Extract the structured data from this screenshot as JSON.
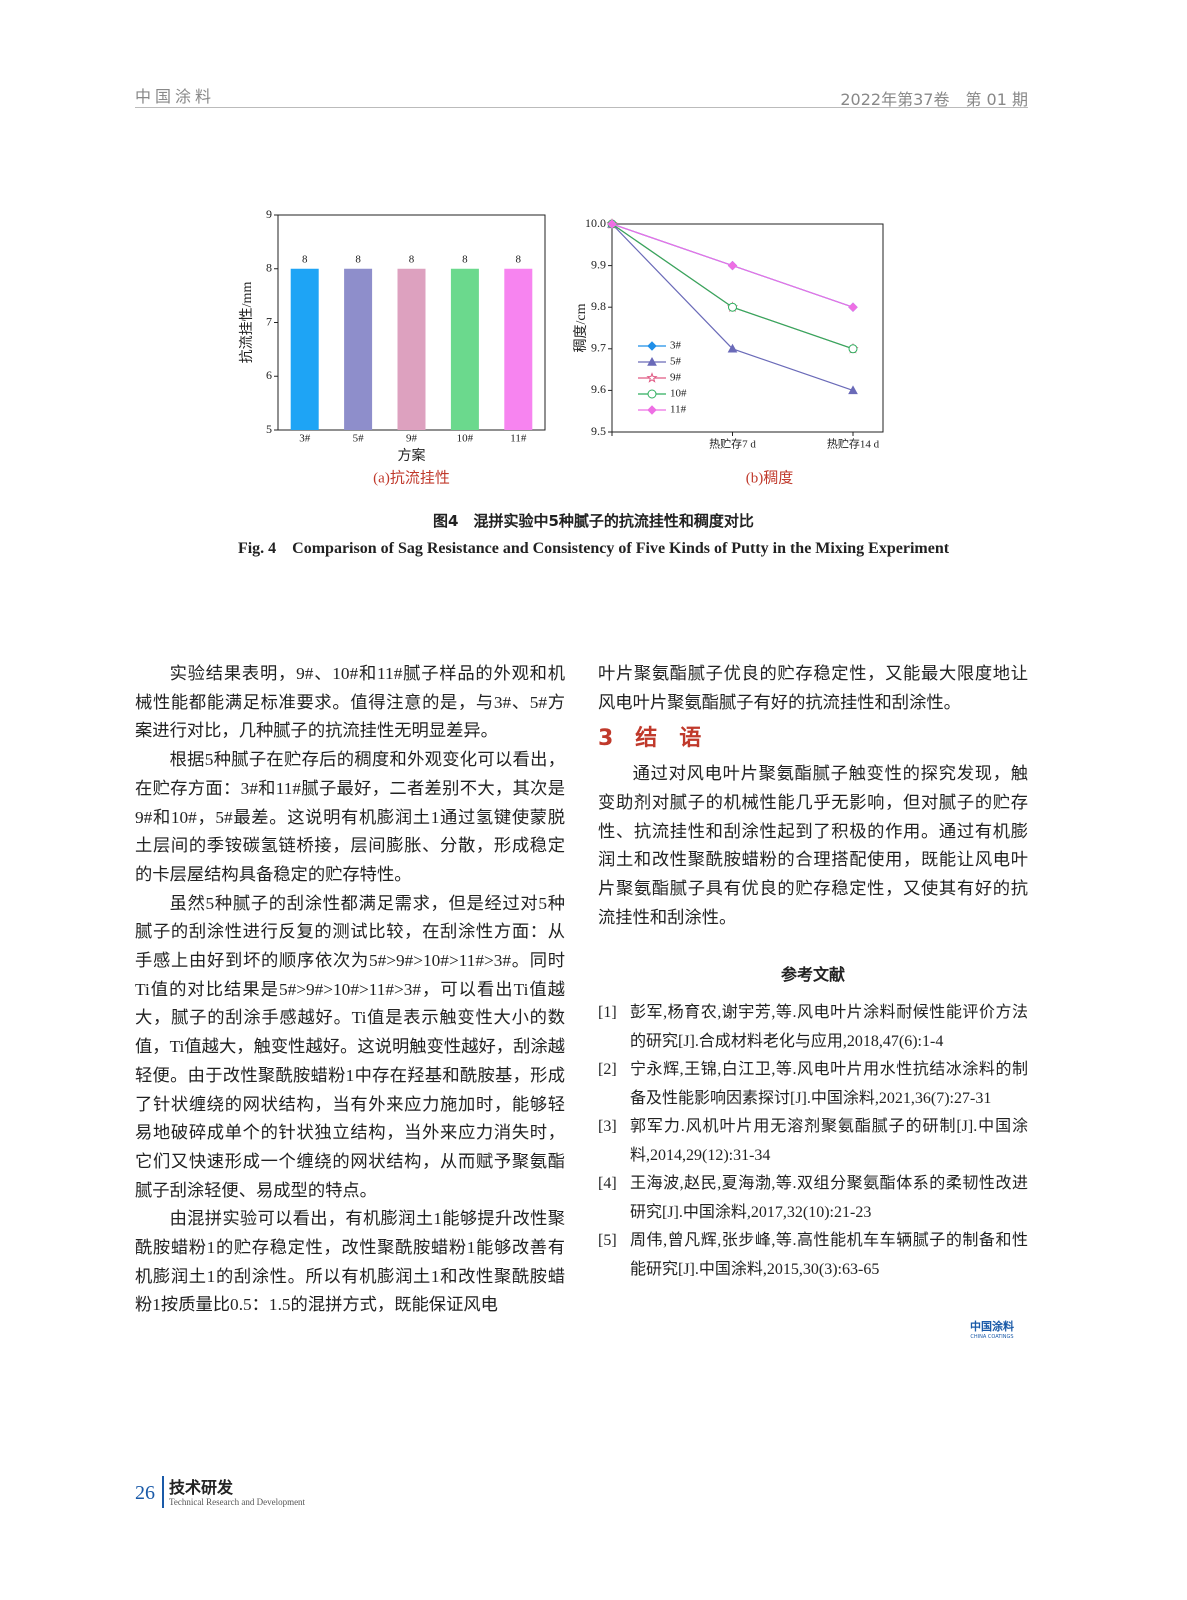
{
  "header": {
    "journal": "中国涂料",
    "issue": "2022年第37卷　第 01 期"
  },
  "chart_data": [
    {
      "type": "bar",
      "sublabel": "(a)抗流挂性",
      "xlabel": "方案",
      "ylabel": "抗流挂性/mm",
      "categories": [
        "3#",
        "5#",
        "9#",
        "10#",
        "11#"
      ],
      "values": [
        8,
        8,
        8,
        8,
        8
      ],
      "colors": [
        "#1ea4f5",
        "#8e8ecb",
        "#dda1bf",
        "#6bd98d",
        "#f784f0"
      ],
      "ylim": [
        5,
        9
      ],
      "yticks": [
        5,
        6,
        7,
        8,
        9
      ]
    },
    {
      "type": "line",
      "sublabel": "(b)稠度",
      "ylabel": "稠度/cm",
      "categories": [
        null,
        "热贮存7 d",
        "热贮存14 d"
      ],
      "series": [
        {
          "name": "3#",
          "color": "#1f8fe8",
          "marker": "diamond",
          "values": [
            10.0,
            9.9,
            9.8
          ]
        },
        {
          "name": "5#",
          "color": "#6a6ab8",
          "marker": "triangle",
          "values": [
            10.0,
            9.7,
            9.6
          ]
        },
        {
          "name": "9#",
          "color": "#e05a84",
          "marker": "star",
          "values": [
            10.0,
            9.8,
            9.7
          ]
        },
        {
          "name": "10#",
          "color": "#2fae5e",
          "marker": "circle",
          "values": [
            10.0,
            9.8,
            9.7
          ]
        },
        {
          "name": "11#",
          "color": "#ee6fe4",
          "marker": "diamond",
          "values": [
            10.0,
            9.9,
            9.8
          ]
        }
      ],
      "ylim": [
        9.5,
        10.0
      ],
      "yticks": [
        9.5,
        9.6,
        9.7,
        9.8,
        9.9,
        {
          "value": 10.0,
          "label": "10.0"
        }
      ],
      "legend": "lower left"
    }
  ],
  "caption": {
    "cn": "图4　混拼实验中5种腻子的抗流挂性和稠度对比",
    "en": "Fig. 4　Comparison of Sag Resistance and Consistency of Five Kinds of Putty in the Mixing Experiment"
  },
  "left_column": [
    "实验结果表明，9#、10#和11#腻子样品的外观和机械性能都能满足标准要求。值得注意的是，与3#、5#方案进行对比，几种腻子的抗流挂性无明显差异。",
    "根据5种腻子在贮存后的稠度和外观变化可以看出，在贮存方面：3#和11#腻子最好，二者差别不大，其次是9#和10#，5#最差。这说明有机膨润土1通过氢键使蒙脱土层间的季铵碳氢链桥接，层间膨胀、分散，形成稳定的卡层屋结构具备稳定的贮存特性。",
    "虽然5种腻子的刮涂性都满足需求，但是经过对5种腻子的刮涂性进行反复的测试比较，在刮涂性方面：从手感上由好到坏的顺序依次为5#>9#>10#>11#>3#。同时Ti值的对比结果是5#>9#>10#>11#>3#，可以看出Ti值越大，腻子的刮涂手感越好。Ti值是表示触变性大小的数值，Ti值越大，触变性越好。这说明触变性越好，刮涂越轻便。由于改性聚酰胺蜡粉1中存在羟基和酰胺基，形成了针状缠绕的网状结构，当有外来应力施加时，能够轻易地破碎成单个的针状独立结构，当外来应力消失时，它们又快速形成一个缠绕的网状结构，从而赋予聚氨酯腻子刮涂轻便、易成型的特点。",
    "由混拼实验可以看出，有机膨润土1能够提升改性聚酰胺蜡粉1的贮存稳定性，改性聚酰胺蜡粉1能够改善有机膨润土1的刮涂性。所以有机膨润土1和改性聚酰胺蜡粉1按质量比0.5：1.5的混拼方式，既能保证风电"
  ],
  "right_column": {
    "continued": "叶片聚氨酯腻子优良的贮存稳定性，又能最大限度地让风电叶片聚氨酯腻子有好的抗流挂性和刮涂性。",
    "section_title": "3　结　语",
    "conclusion": "通过对风电叶片聚氨酯腻子触变性的探究发现，触变助剂对腻子的机械性能几乎无影响，但对腻子的贮存性、抗流挂性和刮涂性起到了积极的作用。通过有机膨润土和改性聚酰胺蜡粉的合理搭配使用，既能让风电叶片聚氨酯腻子具有优良的贮存稳定性，又使其有好的抗流挂性和刮涂性。"
  },
  "references": {
    "title": "参考文献",
    "items": [
      {
        "num": "[1]",
        "text": "彭军,杨育农,谢宇芳,等.风电叶片涂料耐候性能评价方法的研究[J].合成材料老化与应用,2018,47(6):1-4"
      },
      {
        "num": "[2]",
        "text": "宁永辉,王锦,白江卫,等.风电叶片用水性抗结冰涂料的制备及性能影响因素探讨[J].中国涂料,2021,36(7):27-31"
      },
      {
        "num": "[3]",
        "text": "郭军力.风机叶片用无溶剂聚氨酯腻子的研制[J].中国涂料,2014,29(12):31-34"
      },
      {
        "num": "[4]",
        "text": "王海波,赵民,夏海渤,等.双组分聚氨酯体系的柔韧性改进研究[J].中国涂料,2017,32(10):21-23"
      },
      {
        "num": "[5]",
        "text": "周伟,曾凡辉,张步峰,等.高性能机车车辆腻子的制备和性能研究[J].中国涂料,2015,30(3):63-65"
      }
    ]
  },
  "logo": {
    "cn": "中国涂料",
    "en": "CHINA COATINGS"
  },
  "footer": {
    "page": "26",
    "section": "技术研发",
    "section_en": "Technical Research and Development"
  }
}
